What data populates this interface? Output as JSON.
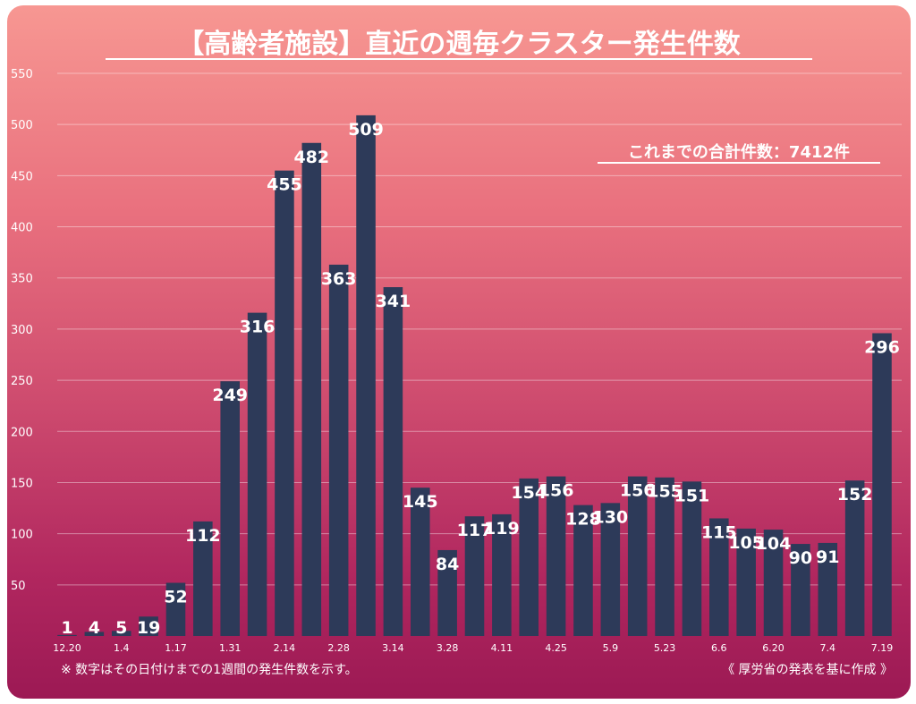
{
  "colors": {
    "bar": "#2d3a59",
    "text": "#ffffff"
  },
  "chart_data": {
    "type": "bar",
    "title": "【高齢者施設】直近の週毎クラスター発生件数",
    "annotation": "これまでの合計件数：7412件",
    "footnote_left": "※ 数字はその日付けまでの1週間の発生件数を示す。",
    "footnote_right": "《 厚労省の発表を基に作成 》",
    "ylim": [
      0,
      550
    ],
    "yticks": [
      50,
      100,
      150,
      200,
      250,
      300,
      350,
      400,
      450,
      500,
      550
    ],
    "grid": true,
    "values": [
      1,
      4,
      5,
      19,
      52,
      112,
      249,
      316,
      455,
      482,
      363,
      509,
      341,
      145,
      84,
      117,
      119,
      154,
      156,
      128,
      130,
      156,
      155,
      151,
      115,
      105,
      104,
      90,
      91,
      152,
      296
    ],
    "x_tick_labels": [
      {
        "index": 0,
        "label": "12.20"
      },
      {
        "index": 2,
        "label": "1.4"
      },
      {
        "index": 4,
        "label": "1.17"
      },
      {
        "index": 6,
        "label": "1.31"
      },
      {
        "index": 8,
        "label": "2.14"
      },
      {
        "index": 10,
        "label": "2.28"
      },
      {
        "index": 12,
        "label": "3.14"
      },
      {
        "index": 14,
        "label": "3.28"
      },
      {
        "index": 16,
        "label": "4.11"
      },
      {
        "index": 18,
        "label": "4.25"
      },
      {
        "index": 20,
        "label": "5.9"
      },
      {
        "index": 22,
        "label": "5.23"
      },
      {
        "index": 24,
        "label": "6.6"
      },
      {
        "index": 26,
        "label": "6.20"
      },
      {
        "index": 28,
        "label": "7.4"
      },
      {
        "index": 30,
        "label": "7.19"
      }
    ]
  }
}
